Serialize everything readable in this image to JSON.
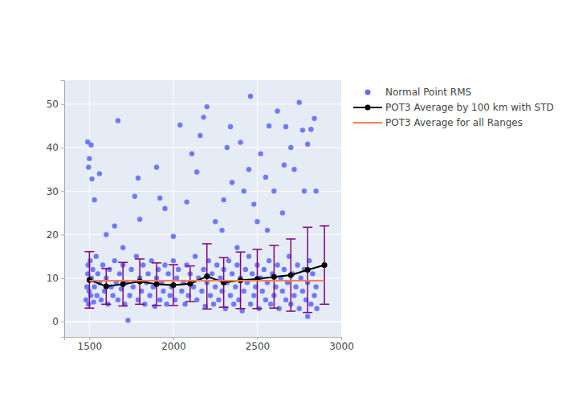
{
  "chart_data": {
    "type": "scatter",
    "xlim": [
      1350,
      3000
    ],
    "xticks": [
      1500,
      2000,
      2500,
      3000
    ],
    "ylim": [
      -3.5,
      55.5
    ],
    "yticks": [
      0,
      10,
      20,
      30,
      40,
      50
    ],
    "grid": true,
    "legend": "right",
    "series": [
      {
        "name": "Normal Point RMS",
        "type": "scatter",
        "color": "#636efa",
        "marker": "circle",
        "x": [
          1480,
          1485,
          1490,
          1492,
          1495,
          1498,
          1500,
          1505,
          1508,
          1512,
          1520,
          1525,
          1530,
          1540,
          1545,
          1550,
          1560,
          1570,
          1580,
          1590,
          1600,
          1610,
          1620,
          1630,
          1640,
          1650,
          1660,
          1670,
          1680,
          1690,
          1700,
          1710,
          1720,
          1740,
          1750,
          1760,
          1780,
          1790,
          1800,
          1810,
          1820,
          1830,
          1840,
          1850,
          1860,
          1870,
          1880,
          1890,
          1900,
          1910,
          1920,
          1930,
          1940,
          1950,
          1960,
          1970,
          1980,
          1990,
          2000,
          2010,
          2020,
          2030,
          2050,
          2060,
          2070,
          2080,
          2090,
          2100,
          2120,
          2130,
          2140,
          2150,
          2170,
          2180,
          2190,
          2200,
          2210,
          2220,
          2230,
          2240,
          2250,
          2260,
          2270,
          2280,
          2290,
          2300,
          2310,
          2320,
          2330,
          2340,
          2350,
          2360,
          2370,
          2380,
          2390,
          2400,
          2410,
          2420,
          2430,
          2440,
          2450,
          2460,
          2470,
          2480,
          2490,
          2500,
          2510,
          2520,
          2530,
          2540,
          2550,
          2560,
          2570,
          2580,
          2590,
          2600,
          2610,
          2620,
          2630,
          2640,
          2650,
          2660,
          2670,
          2680,
          2690,
          2700,
          2710,
          2720,
          2730,
          2740,
          2750,
          2760,
          2770,
          2780,
          2790,
          2800,
          2810,
          2820,
          2830,
          2840,
          2850,
          2855,
          1490,
          1495,
          1500,
          1510,
          1515,
          1530,
          1560,
          1600,
          1650,
          1670,
          1700,
          1730,
          1770,
          1790,
          1800,
          1900,
          1920,
          1950,
          2000,
          2040,
          2080,
          2110,
          2140,
          2160,
          2180,
          2200,
          2250,
          2290,
          2300,
          2320,
          2340,
          2350,
          2380,
          2400,
          2420,
          2450,
          2460,
          2480,
          2500,
          2520,
          2550,
          2560,
          2570,
          2600,
          2620,
          2650,
          2660,
          2670,
          2700,
          2720,
          2750,
          2770,
          2780,
          2800,
          2800,
          2820,
          2840,
          2850
        ],
        "values": [
          5,
          8,
          11,
          13,
          4,
          7,
          9.5,
          14,
          6,
          10,
          12,
          4.5,
          8,
          15,
          6,
          11,
          9,
          5,
          13,
          7,
          10,
          4,
          12,
          8,
          6,
          14,
          9,
          5,
          11,
          7.5,
          13,
          4,
          9,
          6,
          12,
          8,
          15,
          5,
          10,
          7,
          13,
          4,
          9,
          11,
          6,
          14,
          8,
          3.5,
          10,
          12,
          5,
          9,
          7,
          13,
          4,
          11,
          6,
          8,
          14,
          5,
          10,
          12,
          7,
          9,
          4,
          13,
          6,
          11,
          8,
          15,
          5,
          10,
          7,
          12,
          3.5,
          9,
          14,
          6,
          11,
          4,
          8,
          13,
          5,
          10,
          7,
          12,
          3,
          9,
          14,
          6,
          11,
          4,
          8,
          13,
          5,
          10,
          2.5,
          7,
          12,
          9,
          15,
          4,
          11,
          6,
          8,
          13,
          3,
          10,
          7,
          12,
          5,
          9,
          14,
          4,
          11,
          6,
          8,
          13,
          3,
          10,
          7,
          12,
          5,
          9,
          15,
          4,
          11,
          6,
          8,
          13,
          3,
          10,
          7,
          12,
          5,
          9,
          14,
          4,
          11,
          6,
          8,
          3,
          41.3,
          35.5,
          37.5,
          40.6,
          32.8,
          28,
          34,
          20,
          22,
          46.2,
          17,
          0.3,
          28.8,
          33,
          23.5,
          35.5,
          28.4,
          26,
          19.6,
          45.2,
          27.5,
          38.6,
          34.4,
          42.8,
          47,
          49.4,
          23,
          21,
          28,
          40,
          44.8,
          32,
          17,
          41.2,
          30,
          35,
          51.8,
          27,
          23,
          38.6,
          33.2,
          21,
          45,
          30,
          48.4,
          25,
          36,
          44.8,
          40,
          35,
          50.4,
          44,
          30,
          40.8,
          1.2,
          44.2,
          46.7,
          30
        ]
      },
      {
        "name": "POT3 Average by 100 km with STD",
        "type": "line",
        "color": "#000000",
        "marker": "circle",
        "line_style": "solid",
        "x": [
          1500,
          1600,
          1700,
          1800,
          1900,
          2000,
          2100,
          2200,
          2300,
          2400,
          2500,
          2600,
          2700,
          2800,
          2900
        ],
        "values": [
          9.6,
          8.1,
          8.6,
          9.2,
          8.6,
          8.4,
          8.7,
          10.4,
          9.0,
          9.5,
          9.8,
          10.3,
          10.7,
          11.9,
          13.0
        ],
        "error": [
          6.5,
          4.1,
          5.0,
          5.2,
          4.9,
          4.7,
          4.1,
          7.5,
          5.7,
          6.5,
          6.8,
          7.2,
          8.3,
          9.8,
          9.0
        ]
      },
      {
        "name": "POT3 Average for all Ranges",
        "type": "line",
        "color": "#ff7f50",
        "line_style": "solid",
        "x": [
          1500,
          2900
        ],
        "values": [
          9.4,
          9.4
        ]
      }
    ]
  }
}
